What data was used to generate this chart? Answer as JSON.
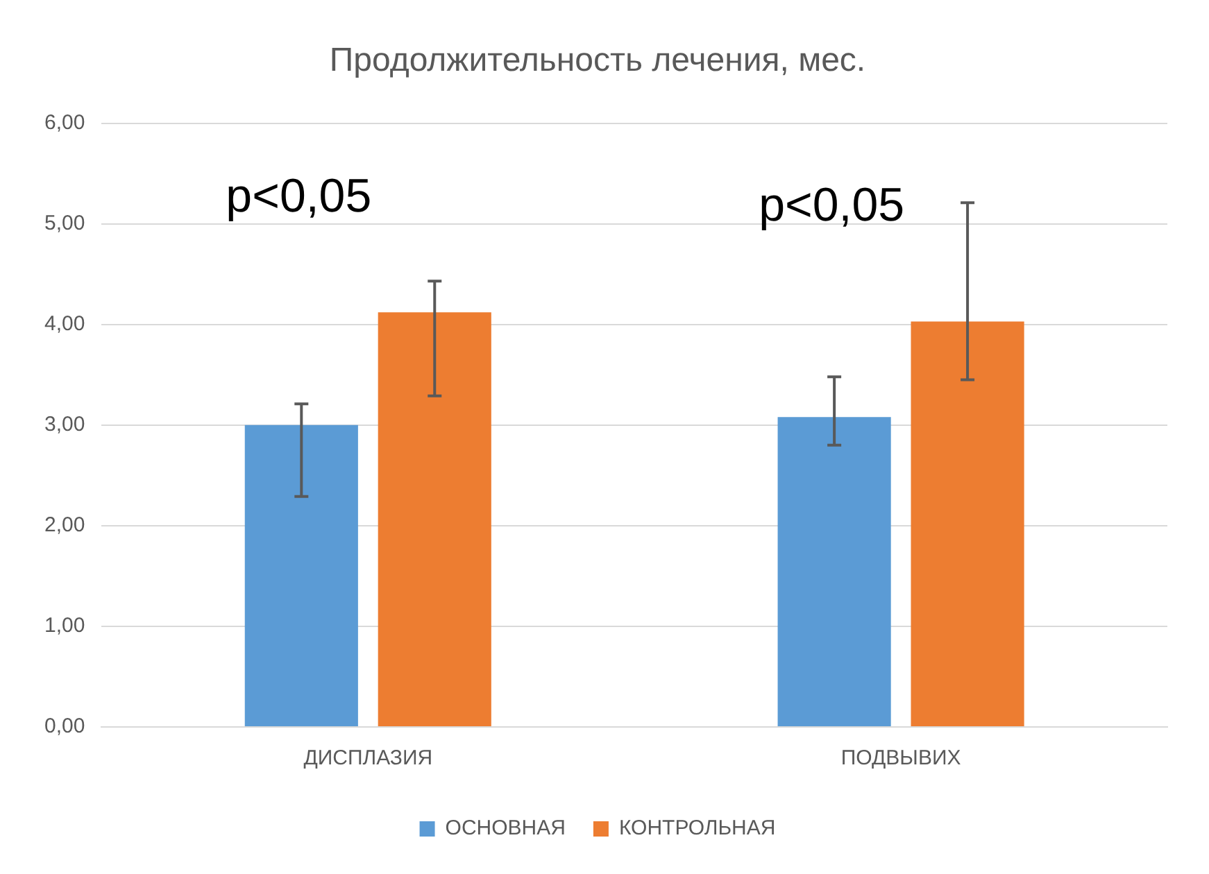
{
  "chart_data": {
    "type": "bar",
    "title": "Продолжительность лечения, мес.",
    "categories": [
      "ДИСПЛАЗИЯ",
      "ПОДВЫВИХ"
    ],
    "series": [
      {
        "name": "ОСНОВНАЯ",
        "color": "#5b9bd5",
        "values": [
          3.0,
          3.08
        ],
        "errors": [
          [
            2.29,
            3.21
          ],
          [
            2.8,
            3.48
          ]
        ]
      },
      {
        "name": "КОНТРОЛЬНАЯ",
        "color": "#ed7d31",
        "values": [
          4.12,
          4.03
        ],
        "errors": [
          [
            3.29,
            4.43
          ],
          [
            3.45,
            5.21
          ]
        ]
      }
    ],
    "ylim": [
      0,
      6
    ],
    "yticks": [
      {
        "value": 0,
        "label": "0,00"
      },
      {
        "value": 1,
        "label": "1,00"
      },
      {
        "value": 2,
        "label": "2,00"
      },
      {
        "value": 3,
        "label": "3,00"
      },
      {
        "value": 4,
        "label": "4,00"
      },
      {
        "value": 5,
        "label": "5,00"
      },
      {
        "value": 6,
        "label": "6,00"
      }
    ],
    "grid": "y",
    "legend": "bottom",
    "annotations": [
      "p<0,05",
      "p<0,05"
    ]
  }
}
